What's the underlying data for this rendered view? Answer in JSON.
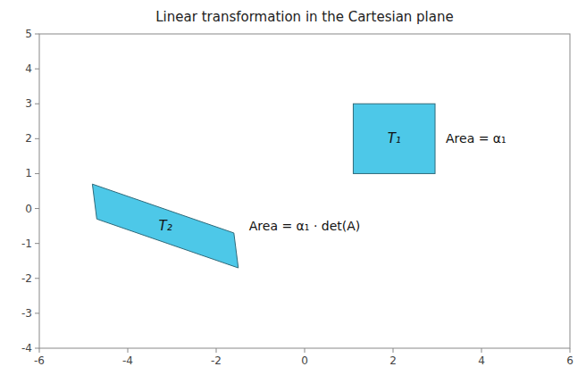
{
  "chart_data": {
    "type": "shapes",
    "title": "Linear transformation in the Cartesian plane",
    "xlim": [
      -6,
      6
    ],
    "ylim": [
      -4,
      5
    ],
    "xticks": [
      -6,
      -4,
      -2,
      0,
      2,
      4,
      6
    ],
    "yticks": [
      -4,
      -3,
      -2,
      -1,
      0,
      1,
      2,
      3,
      4,
      5
    ],
    "grid": false,
    "color": "#4DC8E8",
    "shapes": [
      {
        "type": "rectangle",
        "label": "T₁",
        "annotation": "Area = α₁",
        "x": 1.1,
        "y": 1.0,
        "width": 1.85,
        "height": 2.0
      },
      {
        "type": "polygon",
        "label": "T₂",
        "annotation": "Area = α₁ · det(A)",
        "x": [
          -4.8,
          -1.6,
          -1.5,
          -4.7
        ],
        "y": [
          0.7,
          -0.7,
          -1.7,
          -0.3
        ]
      }
    ]
  }
}
